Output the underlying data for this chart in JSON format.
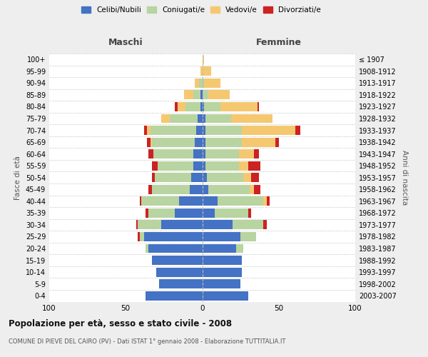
{
  "age_groups": [
    "0-4",
    "5-9",
    "10-14",
    "15-19",
    "20-24",
    "25-29",
    "30-34",
    "35-39",
    "40-44",
    "45-49",
    "50-54",
    "55-59",
    "60-64",
    "65-69",
    "70-74",
    "75-79",
    "80-84",
    "85-89",
    "90-94",
    "95-99",
    "100+"
  ],
  "birth_years": [
    "2003-2007",
    "1998-2002",
    "1993-1997",
    "1988-1992",
    "1983-1987",
    "1978-1982",
    "1973-1977",
    "1968-1972",
    "1963-1967",
    "1958-1962",
    "1953-1957",
    "1948-1952",
    "1943-1947",
    "1938-1942",
    "1933-1937",
    "1928-1932",
    "1923-1927",
    "1918-1922",
    "1913-1917",
    "1908-1912",
    "≤ 1907"
  ],
  "colors": {
    "celibe": "#4472c4",
    "coniugato": "#b8d4a0",
    "vedovo": "#f5c870",
    "divorziato": "#cc2222"
  },
  "maschi": {
    "celibe": [
      37,
      28,
      30,
      33,
      35,
      38,
      27,
      18,
      15,
      8,
      7,
      6,
      6,
      5,
      4,
      3,
      1,
      1,
      0,
      0,
      0
    ],
    "coniugato": [
      0,
      0,
      0,
      0,
      2,
      3,
      15,
      17,
      25,
      25,
      24,
      23,
      26,
      28,
      30,
      18,
      10,
      5,
      2,
      0,
      0
    ],
    "vedovo": [
      0,
      0,
      0,
      0,
      0,
      0,
      0,
      0,
      0,
      0,
      0,
      0,
      0,
      1,
      2,
      6,
      5,
      6,
      3,
      1,
      0
    ],
    "divorziato": [
      0,
      0,
      0,
      0,
      0,
      1,
      1,
      2,
      1,
      2,
      2,
      4,
      3,
      2,
      2,
      0,
      2,
      0,
      0,
      0,
      0
    ]
  },
  "femmine": {
    "nubile": [
      30,
      25,
      26,
      26,
      22,
      25,
      20,
      8,
      10,
      4,
      3,
      2,
      2,
      2,
      2,
      2,
      1,
      0,
      0,
      0,
      0
    ],
    "coniugata": [
      0,
      0,
      0,
      0,
      5,
      10,
      20,
      22,
      30,
      27,
      24,
      22,
      22,
      24,
      24,
      17,
      11,
      4,
      1,
      0,
      0
    ],
    "vedova": [
      0,
      0,
      0,
      0,
      0,
      0,
      0,
      0,
      2,
      3,
      5,
      6,
      10,
      22,
      35,
      27,
      24,
      14,
      11,
      6,
      1
    ],
    "divorziata": [
      0,
      0,
      0,
      0,
      0,
      0,
      2,
      2,
      2,
      4,
      5,
      8,
      3,
      2,
      3,
      0,
      1,
      0,
      0,
      0,
      0
    ]
  },
  "title": "Popolazione per età, sesso e stato civile - 2008",
  "subtitle": "COMUNE DI PIEVE DEL CAIRO (PV) - Dati ISTAT 1° gennaio 2008 - Elaborazione TUTTITALIA.IT",
  "xlabel_left": "Maschi",
  "xlabel_right": "Femmine",
  "ylabel_left": "Fasce di età",
  "ylabel_right": "Anni di nascita",
  "xlim": 100,
  "legend_labels": [
    "Celibi/Nubili",
    "Coniugati/e",
    "Vedovi/e",
    "Divorziati/e"
  ],
  "background_color": "#eeeeee",
  "plot_bg_color": "#ffffff"
}
